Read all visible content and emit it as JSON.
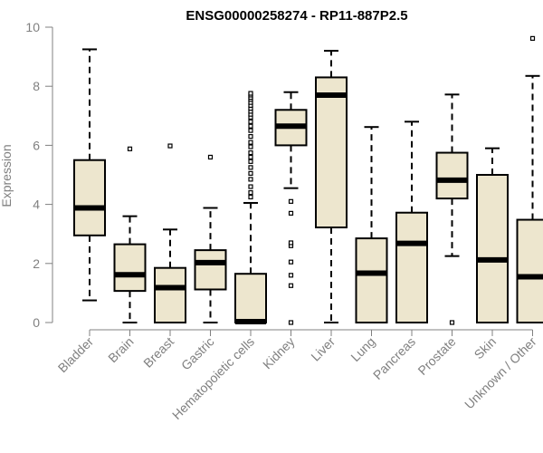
{
  "chart_data": {
    "type": "boxplot",
    "title": "ENSG00000258274 - RP11-887P2.5",
    "xlabel": "",
    "ylabel": "Expression",
    "ylim": [
      0,
      10
    ],
    "yticks": [
      0,
      2,
      4,
      6,
      8,
      10
    ],
    "ytick_labels": [
      "0",
      "2",
      "4",
      "6",
      "8",
      "10"
    ],
    "grid": false,
    "colors": {
      "box_fill": "#ede6ce",
      "stroke": "#000000",
      "axis": "#808080"
    },
    "categories": [
      "Bladder",
      "Brain",
      "Breast",
      "Gastric",
      "Hematopoietic cells",
      "Kidney",
      "Liver",
      "Lung",
      "Pancreas",
      "Prostate",
      "Skin",
      "Unknown / Other"
    ],
    "boxes": [
      {
        "category": "Bladder",
        "whisker_low": 0.75,
        "q1": 2.95,
        "median": 3.88,
        "q3": 5.5,
        "whisker_high": 9.25,
        "outliers": []
      },
      {
        "category": "Brain",
        "whisker_low": 0.0,
        "q1": 1.07,
        "median": 1.62,
        "q3": 2.65,
        "whisker_high": 3.6,
        "outliers": [
          5.88
        ]
      },
      {
        "category": "Breast",
        "whisker_low": 0.0,
        "q1": 0.0,
        "median": 1.18,
        "q3": 1.85,
        "whisker_high": 3.15,
        "outliers": [
          5.98
        ]
      },
      {
        "category": "Gastric",
        "whisker_low": 0.0,
        "q1": 1.12,
        "median": 2.03,
        "q3": 2.45,
        "whisker_high": 3.88,
        "outliers": [
          5.6
        ]
      },
      {
        "category": "Hematopoietic cells",
        "whisker_low": 0.0,
        "q1": 0.0,
        "median": 0.03,
        "q3": 1.65,
        "whisker_high": 4.05,
        "outliers": [
          4.25,
          4.4,
          4.6,
          4.85,
          5.05,
          5.25,
          5.45,
          5.6,
          5.75,
          5.95,
          6.1,
          6.3,
          6.5,
          6.65,
          6.8,
          6.95,
          7.05,
          7.15,
          7.25,
          7.35,
          7.45,
          7.55,
          7.62,
          7.7,
          7.76
        ]
      },
      {
        "category": "Kidney",
        "whisker_low": 4.55,
        "q1": 6.0,
        "median": 6.65,
        "q3": 7.2,
        "whisker_high": 7.8,
        "outliers": [
          0.0,
          1.25,
          1.6,
          2.05,
          2.6,
          2.7,
          3.7,
          4.1
        ]
      },
      {
        "category": "Liver",
        "whisker_low": 0.0,
        "q1": 3.22,
        "median": 7.7,
        "q3": 8.3,
        "whisker_high": 9.2,
        "outliers": []
      },
      {
        "category": "Lung",
        "whisker_low": 0.0,
        "q1": 0.0,
        "median": 1.67,
        "q3": 2.85,
        "whisker_high": 6.62,
        "outliers": []
      },
      {
        "category": "Pancreas",
        "whisker_low": 0.0,
        "q1": 0.0,
        "median": 2.68,
        "q3": 3.72,
        "whisker_high": 6.8,
        "outliers": []
      },
      {
        "category": "Prostate",
        "whisker_low": 2.25,
        "q1": 4.2,
        "median": 4.82,
        "q3": 5.75,
        "whisker_high": 7.72,
        "outliers": [
          0.0
        ]
      },
      {
        "category": "Skin",
        "whisker_low": 0.0,
        "q1": 0.0,
        "median": 2.12,
        "q3": 5.0,
        "whisker_high": 5.9,
        "outliers": []
      },
      {
        "category": "Unknown / Other",
        "whisker_low": 0.0,
        "q1": 0.0,
        "median": 1.55,
        "q3": 3.48,
        "whisker_high": 8.35,
        "outliers": [
          9.62
        ]
      }
    ]
  }
}
